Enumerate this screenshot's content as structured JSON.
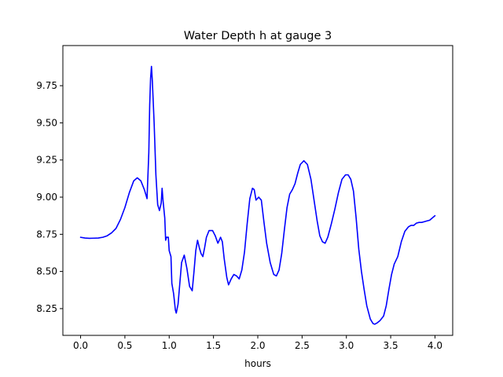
{
  "chart_data": {
    "type": "line",
    "title": "Water Depth h at gauge 3",
    "xlabel": "hours",
    "ylabel": "",
    "xlim": [
      -0.2,
      4.2
    ],
    "ylim": [
      8.07,
      10.02
    ],
    "xticks": [
      0.0,
      0.5,
      1.0,
      1.5,
      2.0,
      2.5,
      3.0,
      3.5,
      4.0
    ],
    "xtick_labels": [
      "0.0",
      "0.5",
      "1.0",
      "1.5",
      "2.0",
      "2.5",
      "3.0",
      "3.5",
      "4.0"
    ],
    "yticks": [
      8.25,
      8.5,
      8.75,
      9.0,
      9.25,
      9.5,
      9.75
    ],
    "ytick_labels": [
      "8.25",
      "8.50",
      "8.75",
      "9.00",
      "9.25",
      "9.50",
      "9.75"
    ],
    "grid": false,
    "series": [
      {
        "name": "",
        "color": "#0000ff",
        "points": [
          [
            0.0,
            8.73
          ],
          [
            0.05,
            8.725
          ],
          [
            0.1,
            8.723
          ],
          [
            0.15,
            8.724
          ],
          [
            0.2,
            8.725
          ],
          [
            0.25,
            8.73
          ],
          [
            0.3,
            8.74
          ],
          [
            0.35,
            8.76
          ],
          [
            0.4,
            8.79
          ],
          [
            0.45,
            8.85
          ],
          [
            0.5,
            8.93
          ],
          [
            0.55,
            9.03
          ],
          [
            0.6,
            9.11
          ],
          [
            0.64,
            9.13
          ],
          [
            0.68,
            9.11
          ],
          [
            0.72,
            9.05
          ],
          [
            0.75,
            8.99
          ],
          [
            0.77,
            9.3
          ],
          [
            0.78,
            9.62
          ],
          [
            0.79,
            9.8
          ],
          [
            0.8,
            9.88
          ],
          [
            0.81,
            9.78
          ],
          [
            0.83,
            9.5
          ],
          [
            0.85,
            9.15
          ],
          [
            0.87,
            8.95
          ],
          [
            0.89,
            8.91
          ],
          [
            0.91,
            8.96
          ],
          [
            0.92,
            9.06
          ],
          [
            0.93,
            8.98
          ],
          [
            0.95,
            8.86
          ],
          [
            0.96,
            8.71
          ],
          [
            0.97,
            8.73
          ],
          [
            0.99,
            8.73
          ],
          [
            1.0,
            8.64
          ],
          [
            1.02,
            8.6
          ],
          [
            1.03,
            8.42
          ],
          [
            1.05,
            8.35
          ],
          [
            1.07,
            8.24
          ],
          [
            1.08,
            8.22
          ],
          [
            1.1,
            8.28
          ],
          [
            1.12,
            8.42
          ],
          [
            1.14,
            8.56
          ],
          [
            1.17,
            8.61
          ],
          [
            1.2,
            8.52
          ],
          [
            1.23,
            8.4
          ],
          [
            1.26,
            8.37
          ],
          [
            1.28,
            8.5
          ],
          [
            1.3,
            8.64
          ],
          [
            1.32,
            8.71
          ],
          [
            1.34,
            8.66
          ],
          [
            1.36,
            8.62
          ],
          [
            1.38,
            8.6
          ],
          [
            1.4,
            8.66
          ],
          [
            1.42,
            8.73
          ],
          [
            1.45,
            8.775
          ],
          [
            1.49,
            8.775
          ],
          [
            1.52,
            8.74
          ],
          [
            1.55,
            8.69
          ],
          [
            1.58,
            8.73
          ],
          [
            1.6,
            8.7
          ],
          [
            1.62,
            8.59
          ],
          [
            1.65,
            8.46
          ],
          [
            1.67,
            8.41
          ],
          [
            1.7,
            8.45
          ],
          [
            1.73,
            8.48
          ],
          [
            1.76,
            8.47
          ],
          [
            1.79,
            8.45
          ],
          [
            1.82,
            8.51
          ],
          [
            1.85,
            8.63
          ],
          [
            1.88,
            8.82
          ],
          [
            1.91,
            8.99
          ],
          [
            1.94,
            9.06
          ],
          [
            1.96,
            9.05
          ],
          [
            1.98,
            8.98
          ],
          [
            2.01,
            9.0
          ],
          [
            2.04,
            8.98
          ],
          [
            2.07,
            8.83
          ],
          [
            2.1,
            8.69
          ],
          [
            2.14,
            8.56
          ],
          [
            2.18,
            8.48
          ],
          [
            2.21,
            8.47
          ],
          [
            2.24,
            8.51
          ],
          [
            2.27,
            8.62
          ],
          [
            2.3,
            8.78
          ],
          [
            2.33,
            8.93
          ],
          [
            2.36,
            9.02
          ],
          [
            2.39,
            9.05
          ],
          [
            2.42,
            9.09
          ],
          [
            2.45,
            9.16
          ],
          [
            2.48,
            9.22
          ],
          [
            2.52,
            9.245
          ],
          [
            2.56,
            9.22
          ],
          [
            2.6,
            9.12
          ],
          [
            2.63,
            9.0
          ],
          [
            2.67,
            8.84
          ],
          [
            2.7,
            8.74
          ],
          [
            2.73,
            8.7
          ],
          [
            2.76,
            8.69
          ],
          [
            2.79,
            8.73
          ],
          [
            2.83,
            8.82
          ],
          [
            2.87,
            8.92
          ],
          [
            2.91,
            9.03
          ],
          [
            2.95,
            9.12
          ],
          [
            2.99,
            9.15
          ],
          [
            3.02,
            9.15
          ],
          [
            3.05,
            9.12
          ],
          [
            3.08,
            9.04
          ],
          [
            3.11,
            8.86
          ],
          [
            3.14,
            8.65
          ],
          [
            3.17,
            8.5
          ],
          [
            3.2,
            8.38
          ],
          [
            3.23,
            8.27
          ],
          [
            3.27,
            8.18
          ],
          [
            3.3,
            8.15
          ],
          [
            3.32,
            8.145
          ],
          [
            3.35,
            8.155
          ],
          [
            3.38,
            8.17
          ],
          [
            3.42,
            8.2
          ],
          [
            3.45,
            8.27
          ],
          [
            3.48,
            8.38
          ],
          [
            3.51,
            8.48
          ],
          [
            3.54,
            8.55
          ],
          [
            3.58,
            8.6
          ],
          [
            3.62,
            8.7
          ],
          [
            3.66,
            8.77
          ],
          [
            3.7,
            8.8
          ],
          [
            3.73,
            8.81
          ],
          [
            3.76,
            8.81
          ],
          [
            3.79,
            8.825
          ],
          [
            3.82,
            8.83
          ],
          [
            3.85,
            8.83
          ],
          [
            3.88,
            8.835
          ],
          [
            3.91,
            8.84
          ],
          [
            3.94,
            8.845
          ],
          [
            3.97,
            8.86
          ],
          [
            4.0,
            8.875
          ]
        ]
      }
    ]
  }
}
